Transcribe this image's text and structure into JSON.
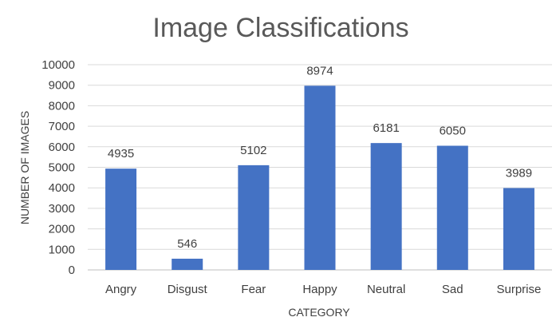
{
  "chart_data": {
    "type": "bar",
    "title": "Image Classifications",
    "xlabel": "CATEGORY",
    "ylabel": "NUMBER OF IMAGES",
    "categories": [
      "Angry",
      "Disgust",
      "Fear",
      "Happy",
      "Neutral",
      "Sad",
      "Surprise"
    ],
    "values": [
      4935,
      546,
      5102,
      8974,
      6181,
      6050,
      3989
    ],
    "data_labels": [
      "4935",
      "546",
      "5102",
      "8974",
      "6181",
      "6050",
      "3989"
    ],
    "ylim": [
      0,
      10000
    ],
    "yticks": [
      "0",
      "1000",
      "2000",
      "3000",
      "4000",
      "5000",
      "6000",
      "7000",
      "8000",
      "9000",
      "10000"
    ],
    "grid": true,
    "legend": "none",
    "bar_color": "#4472C4"
  }
}
